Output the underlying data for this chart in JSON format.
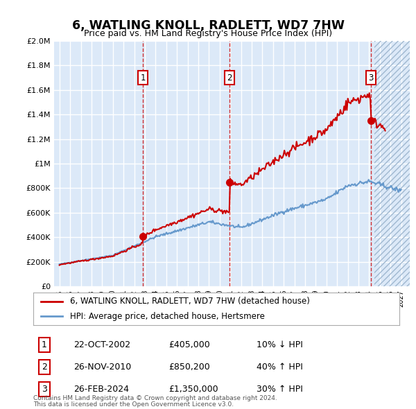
{
  "title": "6, WATLING KNOLL, RADLETT, WD7 7HW",
  "subtitle": "Price paid vs. HM Land Registry's House Price Index (HPI)",
  "ytick_values": [
    0,
    200000,
    400000,
    600000,
    800000,
    1000000,
    1200000,
    1400000,
    1600000,
    1800000,
    2000000
  ],
  "ylim": [
    0,
    2000000
  ],
  "transactions": [
    {
      "label": "1",
      "date_decimal": 2002.81,
      "price": 405000
    },
    {
      "label": "2",
      "date_decimal": 2010.91,
      "price": 850200
    },
    {
      "label": "3",
      "date_decimal": 2024.16,
      "price": 1350000
    }
  ],
  "transaction_dates_str": [
    "22-OCT-2002",
    "26-NOV-2010",
    "26-FEB-2024"
  ],
  "transaction_prices_str": [
    "£405,000",
    "£850,200",
    "£1,350,000"
  ],
  "transaction_hpi_str": [
    "10% ↓ HPI",
    "40% ↑ HPI",
    "30% ↑ HPI"
  ],
  "bg_color": "#dce9f8",
  "hatch_color": "#b0c8e8",
  "grid_color": "#ffffff",
  "line_red": "#cc0000",
  "line_blue": "#6699cc",
  "legend_line1": "6, WATLING KNOLL, RADLETT, WD7 7HW (detached house)",
  "legend_line2": "HPI: Average price, detached house, Hertsmere",
  "footer1": "Contains HM Land Registry data © Crown copyright and database right 2024.",
  "footer2": "This data is licensed under the Open Government Licence v3.0."
}
